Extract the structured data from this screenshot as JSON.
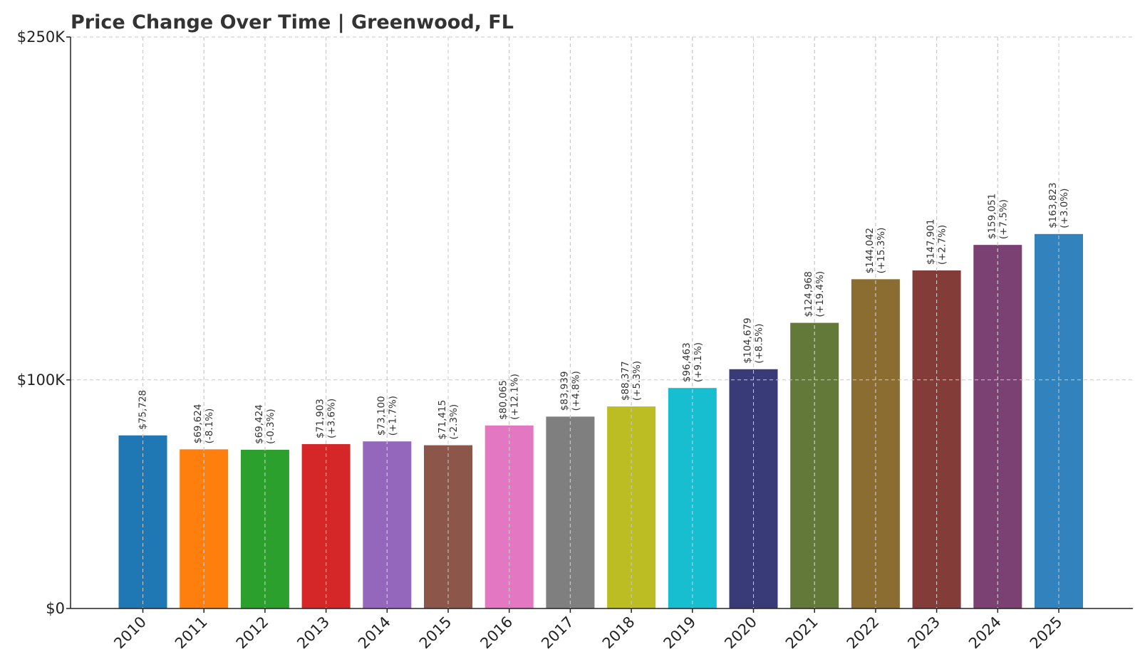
{
  "chart_data": {
    "type": "bar",
    "title": "Price Change Over Time | Greenwood, FL",
    "xlabel": "",
    "ylabel": "",
    "ylim": [
      0,
      250000
    ],
    "ytick_values": [
      0,
      100000,
      250000
    ],
    "ytick_labels": [
      "$0",
      "$100K",
      "$250K"
    ],
    "grid": true,
    "categories": [
      "2010",
      "2011",
      "2012",
      "2013",
      "2014",
      "2015",
      "2016",
      "2017",
      "2018",
      "2019",
      "2020",
      "2021",
      "2022",
      "2023",
      "2024",
      "2025"
    ],
    "values": [
      75728,
      69624,
      69424,
      71903,
      73100,
      71415,
      80065,
      83939,
      88377,
      96463,
      104679,
      124968,
      144042,
      147901,
      159051,
      163823
    ],
    "value_labels": [
      "$75,728",
      "$69,624",
      "$69,424",
      "$71,903",
      "$73,100",
      "$71,415",
      "$80,065",
      "$83,939",
      "$88,377",
      "$96,463",
      "$104,679",
      "$124,968",
      "$144,042",
      "$147,901",
      "$159,051",
      "$163,823"
    ],
    "change_labels": [
      "",
      "(-8.1%)",
      "(-0.3%)",
      "(+3.6%)",
      "(+1.7%)",
      "(-2.3%)",
      "(+12.1%)",
      "(+4.8%)",
      "(+5.3%)",
      "(+9.1%)",
      "(+8.5%)",
      "(+19.4%)",
      "(+15.3%)",
      "(+2.7%)",
      "(+7.5%)",
      "(+3.0%)"
    ],
    "colors": [
      "#1f77b4",
      "#ff7f0e",
      "#2ca02c",
      "#d62728",
      "#9467bd",
      "#8c564b",
      "#e377c2",
      "#7f7f7f",
      "#bcbd22",
      "#17becf",
      "#393b79",
      "#637939",
      "#8c6d31",
      "#843c39",
      "#7b4173",
      "#3182bd"
    ]
  }
}
